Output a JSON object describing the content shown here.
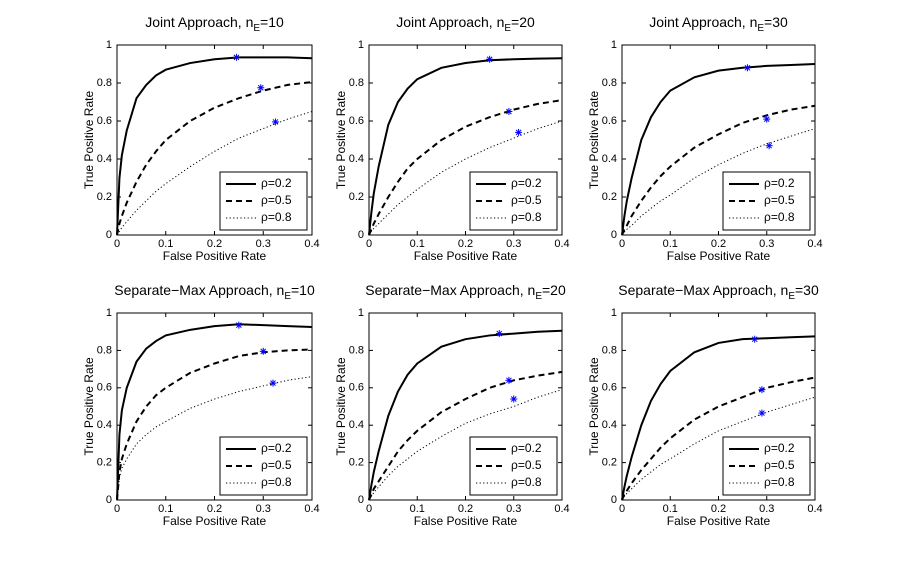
{
  "chart_data": [
    {
      "type": "line",
      "title": {
        "main": "Joint Approach, n",
        "sub": "E",
        "rest": "=10"
      },
      "x_label": "False Positive Rate",
      "y_label": "True Positive Rate",
      "x": [
        0,
        0.005,
        0.01,
        0.02,
        0.04,
        0.06,
        0.08,
        0.1,
        0.15,
        0.2,
        0.25,
        0.3,
        0.35,
        0.4
      ],
      "xlim": [
        0,
        0.4
      ],
      "xticks": [
        0,
        0.1,
        0.2,
        0.3,
        0.4
      ],
      "ylim": [
        0,
        1
      ],
      "yticks": [
        0,
        0.2,
        0.4,
        0.6,
        0.8,
        1
      ],
      "legend": "lower right",
      "marker_color": "#0000ff",
      "series": [
        {
          "name": "ρ=0.2",
          "color": "#000000",
          "dash": "solid",
          "values": [
            0,
            0.3,
            0.42,
            0.55,
            0.72,
            0.79,
            0.84,
            0.87,
            0.905,
            0.925,
            0.935,
            0.935,
            0.935,
            0.93
          ],
          "marker_x": 0.245,
          "marker_y": 0.935
        },
        {
          "name": "ρ=0.5",
          "color": "#000000",
          "dash": "dashed",
          "values": [
            0,
            0.06,
            0.1,
            0.17,
            0.28,
            0.37,
            0.44,
            0.5,
            0.6,
            0.67,
            0.72,
            0.76,
            0.79,
            0.805
          ],
          "marker_x": 0.295,
          "marker_y": 0.775
        },
        {
          "name": "ρ=0.8",
          "color": "#000000",
          "dash": "dotted",
          "values": [
            0,
            0.02,
            0.04,
            0.07,
            0.13,
            0.18,
            0.23,
            0.27,
            0.36,
            0.44,
            0.51,
            0.56,
            0.61,
            0.65
          ],
          "marker_x": 0.325,
          "marker_y": 0.595
        }
      ]
    },
    {
      "type": "line",
      "title": {
        "main": "Joint Approach, n",
        "sub": "E",
        "rest": "=20"
      },
      "x_label": "False Positive Rate",
      "y_label": "True Positive Rate",
      "x": [
        0,
        0.005,
        0.01,
        0.02,
        0.04,
        0.06,
        0.08,
        0.1,
        0.15,
        0.2,
        0.25,
        0.3,
        0.35,
        0.4
      ],
      "xlim": [
        0,
        0.4
      ],
      "xticks": [
        0,
        0.1,
        0.2,
        0.3,
        0.4
      ],
      "ylim": [
        0,
        1
      ],
      "yticks": [
        0,
        0.2,
        0.4,
        0.6,
        0.8,
        1
      ],
      "legend": "lower right",
      "marker_color": "#0000ff",
      "series": [
        {
          "name": "ρ=0.2",
          "color": "#000000",
          "dash": "solid",
          "values": [
            0,
            0.12,
            0.22,
            0.36,
            0.58,
            0.7,
            0.77,
            0.82,
            0.88,
            0.905,
            0.92,
            0.925,
            0.928,
            0.93
          ],
          "marker_x": 0.25,
          "marker_y": 0.925
        },
        {
          "name": "ρ=0.5",
          "color": "#000000",
          "dash": "dashed",
          "values": [
            0,
            0.03,
            0.06,
            0.11,
            0.2,
            0.28,
            0.35,
            0.4,
            0.5,
            0.57,
            0.62,
            0.66,
            0.69,
            0.71
          ],
          "marker_x": 0.29,
          "marker_y": 0.65
        },
        {
          "name": "ρ=0.8",
          "color": "#000000",
          "dash": "dotted",
          "values": [
            0,
            0.02,
            0.035,
            0.06,
            0.11,
            0.16,
            0.2,
            0.24,
            0.33,
            0.4,
            0.46,
            0.51,
            0.56,
            0.6
          ],
          "marker_x": 0.31,
          "marker_y": 0.54
        }
      ]
    },
    {
      "type": "line",
      "title": {
        "main": "Joint Approach, n",
        "sub": "E",
        "rest": "=30"
      },
      "x_label": "False Positive Rate",
      "y_label": "True Positive Rate",
      "x": [
        0,
        0.005,
        0.01,
        0.02,
        0.04,
        0.06,
        0.08,
        0.1,
        0.15,
        0.2,
        0.25,
        0.3,
        0.35,
        0.4
      ],
      "xlim": [
        0,
        0.4
      ],
      "xticks": [
        0,
        0.1,
        0.2,
        0.3,
        0.4
      ],
      "ylim": [
        0,
        1
      ],
      "yticks": [
        0,
        0.2,
        0.4,
        0.6,
        0.8,
        1
      ],
      "legend": "lower right",
      "marker_color": "#0000ff",
      "series": [
        {
          "name": "ρ=0.2",
          "color": "#000000",
          "dash": "solid",
          "values": [
            0,
            0.1,
            0.18,
            0.3,
            0.5,
            0.62,
            0.7,
            0.76,
            0.83,
            0.865,
            0.88,
            0.89,
            0.895,
            0.9
          ],
          "marker_x": 0.26,
          "marker_y": 0.88
        },
        {
          "name": "ρ=0.5",
          "color": "#000000",
          "dash": "dashed",
          "values": [
            0,
            0.03,
            0.05,
            0.1,
            0.18,
            0.25,
            0.31,
            0.36,
            0.46,
            0.53,
            0.59,
            0.63,
            0.66,
            0.68
          ],
          "marker_x": 0.3,
          "marker_y": 0.61
        },
        {
          "name": "ρ=0.8",
          "color": "#000000",
          "dash": "dotted",
          "values": [
            0,
            0.015,
            0.03,
            0.05,
            0.1,
            0.14,
            0.18,
            0.21,
            0.3,
            0.37,
            0.43,
            0.48,
            0.52,
            0.56
          ],
          "marker_x": 0.305,
          "marker_y": 0.47
        }
      ]
    },
    {
      "type": "line",
      "title": {
        "main": "Separate−Max Approach, n",
        "sub": "E",
        "rest": "=10"
      },
      "x_label": "False Positive Rate",
      "y_label": "True Positive Rate",
      "x": [
        0,
        0.005,
        0.01,
        0.02,
        0.04,
        0.06,
        0.08,
        0.1,
        0.15,
        0.2,
        0.25,
        0.3,
        0.35,
        0.4
      ],
      "xlim": [
        0,
        0.4
      ],
      "xticks": [
        0,
        0.1,
        0.2,
        0.3,
        0.4
      ],
      "ylim": [
        0,
        1
      ],
      "yticks": [
        0,
        0.2,
        0.4,
        0.6,
        0.8,
        1
      ],
      "legend": "lower right",
      "marker_color": "#0000ff",
      "series": [
        {
          "name": "ρ=0.2",
          "color": "#000000",
          "dash": "solid",
          "values": [
            0,
            0.35,
            0.48,
            0.6,
            0.74,
            0.81,
            0.85,
            0.88,
            0.91,
            0.93,
            0.94,
            0.935,
            0.93,
            0.925
          ],
          "marker_x": 0.25,
          "marker_y": 0.935
        },
        {
          "name": "ρ=0.5",
          "color": "#000000",
          "dash": "dashed",
          "values": [
            0,
            0.15,
            0.22,
            0.3,
            0.42,
            0.5,
            0.56,
            0.6,
            0.68,
            0.73,
            0.77,
            0.79,
            0.8,
            0.805
          ],
          "marker_x": 0.3,
          "marker_y": 0.795
        },
        {
          "name": "ρ=0.8",
          "color": "#000000",
          "dash": "dotted",
          "values": [
            0,
            0.12,
            0.17,
            0.22,
            0.3,
            0.35,
            0.39,
            0.42,
            0.49,
            0.54,
            0.58,
            0.61,
            0.64,
            0.66
          ],
          "marker_x": 0.32,
          "marker_y": 0.625
        }
      ]
    },
    {
      "type": "line",
      "title": {
        "main": "Separate−Max Approach, n",
        "sub": "E",
        "rest": "=20"
      },
      "x_label": "False Positive Rate",
      "y_label": "True Positive Rate",
      "x": [
        0,
        0.005,
        0.01,
        0.02,
        0.04,
        0.06,
        0.08,
        0.1,
        0.15,
        0.2,
        0.25,
        0.3,
        0.35,
        0.4
      ],
      "xlim": [
        0,
        0.4
      ],
      "xticks": [
        0,
        0.1,
        0.2,
        0.3,
        0.4
      ],
      "ylim": [
        0,
        1
      ],
      "yticks": [
        0,
        0.2,
        0.4,
        0.6,
        0.8,
        1
      ],
      "legend": "lower right",
      "marker_color": "#0000ff",
      "series": [
        {
          "name": "ρ=0.2",
          "color": "#000000",
          "dash": "solid",
          "values": [
            0,
            0.08,
            0.15,
            0.26,
            0.45,
            0.58,
            0.67,
            0.73,
            0.82,
            0.86,
            0.88,
            0.89,
            0.9,
            0.905
          ],
          "marker_x": 0.27,
          "marker_y": 0.89
        },
        {
          "name": "ρ=0.5",
          "color": "#000000",
          "dash": "dashed",
          "values": [
            0,
            0.03,
            0.06,
            0.1,
            0.18,
            0.26,
            0.32,
            0.37,
            0.47,
            0.54,
            0.6,
            0.64,
            0.665,
            0.685
          ],
          "marker_x": 0.29,
          "marker_y": 0.64
        },
        {
          "name": "ρ=0.8",
          "color": "#000000",
          "dash": "dotted",
          "values": [
            0,
            0.02,
            0.04,
            0.07,
            0.13,
            0.18,
            0.22,
            0.26,
            0.34,
            0.41,
            0.46,
            0.5,
            0.55,
            0.59
          ],
          "marker_x": 0.3,
          "marker_y": 0.54
        }
      ]
    },
    {
      "type": "line",
      "title": {
        "main": "Separate−Max Approach, n",
        "sub": "E",
        "rest": "=30"
      },
      "x_label": "False Positive Rate",
      "y_label": "True Positive Rate",
      "x": [
        0,
        0.005,
        0.01,
        0.02,
        0.04,
        0.06,
        0.08,
        0.1,
        0.15,
        0.2,
        0.25,
        0.3,
        0.35,
        0.4
      ],
      "xlim": [
        0,
        0.4
      ],
      "xticks": [
        0,
        0.1,
        0.2,
        0.3,
        0.4
      ],
      "ylim": [
        0,
        1
      ],
      "yticks": [
        0,
        0.2,
        0.4,
        0.6,
        0.8,
        1
      ],
      "legend": "lower right",
      "marker_color": "#0000ff",
      "series": [
        {
          "name": "ρ=0.2",
          "color": "#000000",
          "dash": "solid",
          "values": [
            0,
            0.07,
            0.13,
            0.23,
            0.4,
            0.53,
            0.62,
            0.69,
            0.79,
            0.84,
            0.86,
            0.865,
            0.87,
            0.875
          ],
          "marker_x": 0.275,
          "marker_y": 0.86
        },
        {
          "name": "ρ=0.5",
          "color": "#000000",
          "dash": "dashed",
          "values": [
            0,
            0.03,
            0.05,
            0.09,
            0.16,
            0.22,
            0.28,
            0.33,
            0.43,
            0.5,
            0.55,
            0.6,
            0.63,
            0.655
          ],
          "marker_x": 0.29,
          "marker_y": 0.59
        },
        {
          "name": "ρ=0.8",
          "color": "#000000",
          "dash": "dotted",
          "values": [
            0,
            0.02,
            0.035,
            0.06,
            0.11,
            0.15,
            0.19,
            0.22,
            0.3,
            0.37,
            0.42,
            0.47,
            0.51,
            0.55
          ],
          "marker_x": 0.29,
          "marker_y": 0.465
        }
      ]
    }
  ]
}
